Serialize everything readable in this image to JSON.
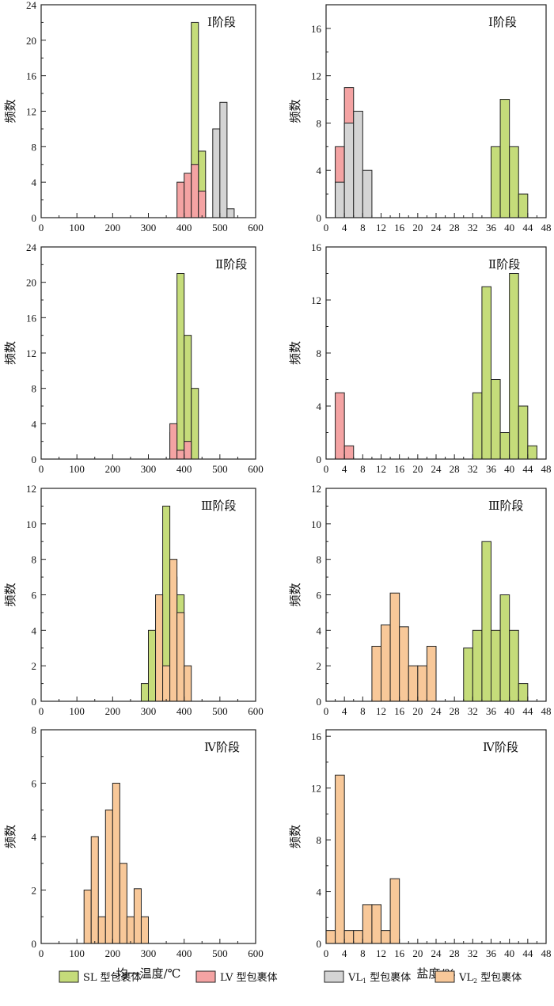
{
  "colors": {
    "SL": "#c5dc7a",
    "LV": "#f4a3a3",
    "VL1": "#d4d4d4",
    "VL2": "#f8c899"
  },
  "legend": [
    {
      "key": "SL",
      "label": "SL 型包裹体"
    },
    {
      "key": "LV",
      "label": "LV 型包裹体"
    },
    {
      "key": "VL1",
      "label": "VL",
      "sub": "1",
      "suffix": " 型包裹体"
    },
    {
      "key": "VL2",
      "label": "VL",
      "sub": "2",
      "suffix": " 型包裹体"
    }
  ],
  "ylabel": "频数",
  "xlabels": {
    "temperature": "均一温度/℃",
    "salinity": "盐度/%"
  },
  "chart_data": [
    {
      "type": "bar",
      "stage": "Ⅰ阶段",
      "variable": "temperature",
      "xlim": [
        0,
        600
      ],
      "xticks": [
        0,
        100,
        200,
        300,
        400,
        500,
        600
      ],
      "ylim": [
        0,
        24
      ],
      "yticks": [
        0,
        4,
        8,
        12,
        16,
        20,
        24
      ],
      "bin_width": 20,
      "series": [
        {
          "name": "SL",
          "bins": [
            [
              400,
              1
            ],
            [
              420,
              22
            ],
            [
              440,
              7.5
            ]
          ]
        },
        {
          "name": "LV",
          "bins": [
            [
              380,
              4
            ],
            [
              400,
              5
            ],
            [
              420,
              6
            ],
            [
              440,
              3
            ]
          ]
        },
        {
          "name": "VL1",
          "bins": [
            [
              480,
              10
            ],
            [
              500,
              13
            ],
            [
              520,
              1
            ]
          ]
        }
      ]
    },
    {
      "type": "bar",
      "stage": "Ⅰ阶段",
      "variable": "salinity",
      "xlim": [
        0,
        48
      ],
      "xticks": [
        0,
        4,
        8,
        12,
        16,
        20,
        24,
        28,
        32,
        36,
        40,
        44,
        48
      ],
      "ylim": [
        0,
        18
      ],
      "yticks": [
        0,
        4,
        8,
        12,
        16
      ],
      "bin_width": 2,
      "series": [
        {
          "name": "SL",
          "bins": [
            [
              36,
              6
            ],
            [
              38,
              10
            ],
            [
              40,
              6
            ],
            [
              42,
              2
            ]
          ]
        },
        {
          "name": "LV",
          "bins": [
            [
              2,
              6
            ],
            [
              4,
              11
            ],
            [
              6,
              1
            ]
          ]
        },
        {
          "name": "VL1",
          "bins": [
            [
              2,
              3
            ],
            [
              4,
              8
            ],
            [
              6,
              9
            ],
            [
              8,
              4
            ]
          ]
        }
      ]
    },
    {
      "type": "bar",
      "stage": "Ⅱ阶段",
      "variable": "temperature",
      "xlim": [
        0,
        600
      ],
      "xticks": [
        0,
        100,
        200,
        300,
        400,
        500,
        600
      ],
      "ylim": [
        0,
        24
      ],
      "yticks": [
        0,
        4,
        8,
        12,
        16,
        20,
        24
      ],
      "bin_width": 20,
      "series": [
        {
          "name": "SL",
          "bins": [
            [
              360,
              3
            ],
            [
              380,
              21
            ],
            [
              400,
              14
            ],
            [
              420,
              8
            ]
          ]
        },
        {
          "name": "LV",
          "bins": [
            [
              360,
              4
            ],
            [
              380,
              1
            ],
            [
              400,
              2
            ]
          ]
        }
      ]
    },
    {
      "type": "bar",
      "stage": "Ⅱ阶段",
      "variable": "salinity",
      "xlim": [
        0,
        48
      ],
      "xticks": [
        0,
        4,
        8,
        12,
        16,
        20,
        24,
        28,
        32,
        36,
        40,
        44,
        48
      ],
      "ylim": [
        0,
        16
      ],
      "yticks": [
        0,
        4,
        8,
        12,
        16
      ],
      "bin_width": 2,
      "series": [
        {
          "name": "SL",
          "bins": [
            [
              32,
              5
            ],
            [
              34,
              13
            ],
            [
              36,
              6
            ],
            [
              38,
              2
            ],
            [
              40,
              14
            ],
            [
              42,
              4
            ],
            [
              44,
              1
            ]
          ]
        },
        {
          "name": "LV",
          "bins": [
            [
              2,
              5
            ],
            [
              4,
              1
            ]
          ]
        }
      ]
    },
    {
      "type": "bar",
      "stage": "Ⅲ阶段",
      "variable": "temperature",
      "xlim": [
        0,
        600
      ],
      "xticks": [
        0,
        100,
        200,
        300,
        400,
        500,
        600
      ],
      "ylim": [
        0,
        12
      ],
      "yticks": [
        0,
        2,
        4,
        6,
        8,
        10,
        12
      ],
      "bin_width": 20,
      "series": [
        {
          "name": "SL",
          "bins": [
            [
              280,
              1
            ],
            [
              300,
              4
            ],
            [
              320,
              4
            ],
            [
              340,
              11
            ],
            [
              360,
              7
            ],
            [
              380,
              6
            ]
          ]
        },
        {
          "name": "VL2",
          "bins": [
            [
              320,
              6
            ],
            [
              340,
              2
            ],
            [
              360,
              8
            ],
            [
              380,
              5
            ],
            [
              400,
              2
            ]
          ]
        }
      ]
    },
    {
      "type": "bar",
      "stage": "Ⅲ阶段",
      "variable": "salinity",
      "xlim": [
        0,
        48
      ],
      "xticks": [
        0,
        4,
        8,
        12,
        16,
        20,
        24,
        28,
        32,
        36,
        40,
        44,
        48
      ],
      "ylim": [
        0,
        12
      ],
      "yticks": [
        0,
        2,
        4,
        6,
        8,
        10,
        12
      ],
      "bin_width": 2,
      "series": [
        {
          "name": "SL",
          "bins": [
            [
              30,
              3
            ],
            [
              32,
              4
            ],
            [
              34,
              9
            ],
            [
              36,
              4
            ],
            [
              38,
              6
            ],
            [
              40,
              4
            ],
            [
              42,
              1
            ]
          ]
        },
        {
          "name": "VL2",
          "bins": [
            [
              10,
              3.1
            ],
            [
              12,
              4.3
            ],
            [
              14,
              6.1
            ],
            [
              16,
              4.2
            ],
            [
              18,
              2
            ],
            [
              20,
              2
            ],
            [
              22,
              3.1
            ]
          ]
        }
      ]
    },
    {
      "type": "bar",
      "stage": "Ⅳ阶段",
      "variable": "temperature",
      "xlim": [
        0,
        600
      ],
      "xticks": [
        0,
        100,
        200,
        300,
        400,
        500,
        600
      ],
      "ylim": [
        0,
        8
      ],
      "yticks": [
        0,
        2,
        4,
        6,
        8
      ],
      "bin_width": 20,
      "series": [
        {
          "name": "VL2",
          "bins": [
            [
              120,
              2
            ],
            [
              140,
              4
            ],
            [
              160,
              1
            ],
            [
              180,
              5
            ],
            [
              200,
              6
            ],
            [
              220,
              3
            ],
            [
              240,
              1
            ],
            [
              260,
              2.05
            ],
            [
              280,
              1
            ]
          ]
        }
      ]
    },
    {
      "type": "bar",
      "stage": "Ⅳ阶段",
      "variable": "salinity",
      "xlim": [
        0,
        48
      ],
      "xticks": [
        0,
        4,
        8,
        12,
        16,
        20,
        24,
        28,
        32,
        36,
        40,
        44,
        48
      ],
      "ylim": [
        0,
        16.5
      ],
      "yticks": [
        0,
        4,
        8,
        12,
        16
      ],
      "bin_width": 2,
      "series": [
        {
          "name": "VL2",
          "bins": [
            [
              0,
              1
            ],
            [
              2,
              13
            ],
            [
              4,
              1
            ],
            [
              6,
              1
            ],
            [
              8,
              3
            ],
            [
              10,
              3
            ],
            [
              12,
              1
            ],
            [
              14,
              5
            ]
          ]
        }
      ]
    }
  ]
}
